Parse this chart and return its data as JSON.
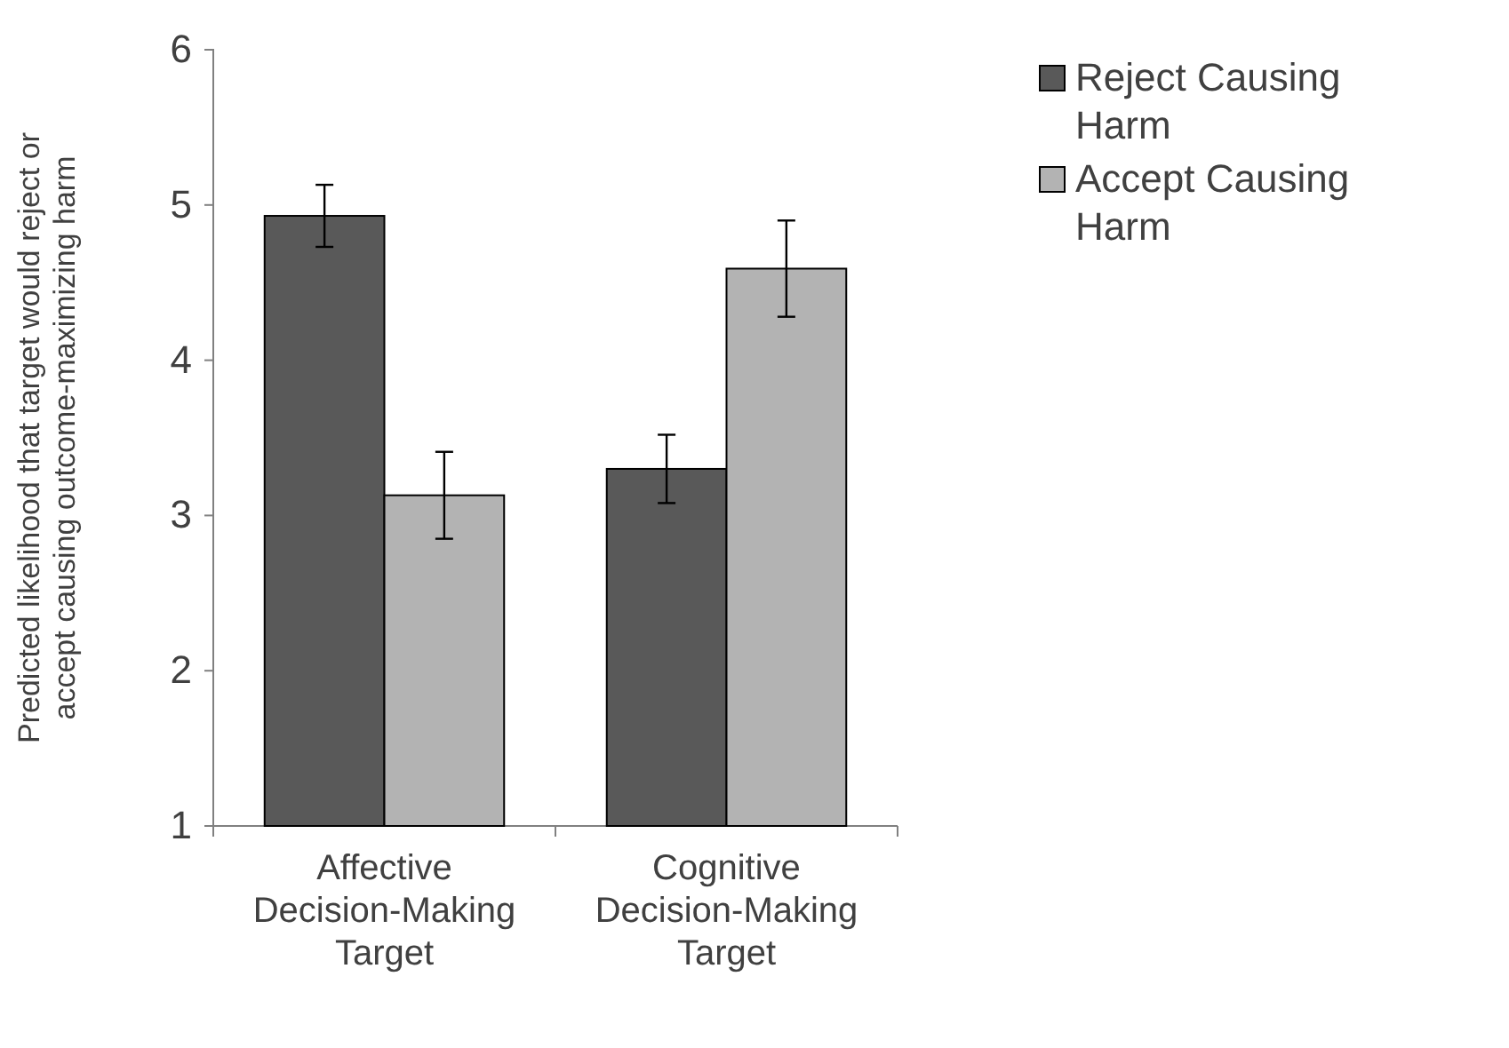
{
  "chart_data": {
    "type": "bar",
    "ylabel": "Predicted likelihood  that target would reject or\naccept causing outcome-maximizing harm",
    "categories": [
      "Affective\nDecision-Making\nTarget",
      "Cognitive\nDecision-Making\nTarget"
    ],
    "series": [
      {
        "name": "Reject Causing\nHarm",
        "color": "#595959",
        "values": [
          4.93,
          3.3
        ],
        "errors": [
          0.2,
          0.22
        ]
      },
      {
        "name": "Accept Causing\nHarm",
        "color": "#b3b3b3",
        "values": [
          3.13,
          4.59
        ],
        "errors": [
          0.28,
          0.31
        ]
      }
    ],
    "ylim": [
      1,
      6
    ],
    "yticks": [
      1,
      2,
      3,
      4,
      5,
      6
    ],
    "grid": false,
    "legend": "top right"
  }
}
